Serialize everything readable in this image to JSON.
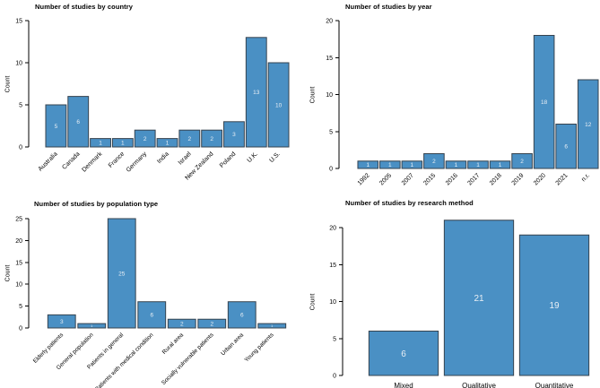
{
  "figure": {
    "description": "Four bar charts summarizing studies by country, year, population type and research method"
  },
  "colors": {
    "background": "#ffffff",
    "bar_fill": "#4a90c4",
    "bar_stroke": "#36434f",
    "bar_value_label": "#e9eff5",
    "axis": "#000000",
    "text": "#000000"
  },
  "chart_data": [
    {
      "type": "bar",
      "title": "Number of studies by country",
      "ylabel": "Count",
      "categories": [
        "Australia",
        "Canada",
        "Denmark",
        "France",
        "Germany",
        "India",
        "Israel",
        "New Zealand",
        "Poland",
        "U.K.",
        "U.S."
      ],
      "values": [
        5,
        6,
        1,
        1,
        2,
        1,
        2,
        2,
        3,
        13,
        10
      ],
      "ylim": [
        0,
        15
      ],
      "yticks": [
        0,
        5,
        10,
        15
      ],
      "x_tick_rotation": 45,
      "grid": false,
      "legend": false,
      "bar_value_labels": true
    },
    {
      "type": "bar",
      "title": "Number of studies by year",
      "ylabel": "Count",
      "categories": [
        "1992",
        "2005",
        "2007",
        "2015",
        "2016",
        "2017",
        "2018",
        "2019",
        "2020",
        "2021",
        "n.r."
      ],
      "values": [
        1,
        1,
        1,
        2,
        1,
        1,
        1,
        2,
        18,
        6,
        12
      ],
      "ylim": [
        0,
        20
      ],
      "yticks": [
        0,
        5,
        10,
        15,
        20
      ],
      "x_tick_rotation": 45,
      "grid": false,
      "legend": false,
      "bar_value_labels": true
    },
    {
      "type": "bar",
      "title": "Number of studies by population type",
      "ylabel": "Count",
      "categories": [
        "Elderly patients",
        "General population",
        "Patients in general",
        "Patients with medical condition",
        "Rural area",
        "Socially vulnerable patients",
        "Urban area",
        "Young patients"
      ],
      "values": [
        3,
        1,
        25,
        6,
        2,
        2,
        6,
        1
      ],
      "ylim": [
        0,
        25
      ],
      "yticks": [
        0,
        5,
        10,
        15,
        20,
        25
      ],
      "x_tick_rotation": 45,
      "grid": false,
      "legend": false,
      "bar_value_labels": true
    },
    {
      "type": "bar",
      "title": "Number of studies by research method",
      "ylabel": "Count",
      "categories": [
        "Mixed",
        "Qualitative",
        "Quantitative"
      ],
      "values": [
        6,
        21,
        19
      ],
      "ylim": [
        0,
        20
      ],
      "yticks": [
        0,
        5,
        10,
        15,
        20
      ],
      "x_tick_rotation": 0,
      "grid": false,
      "legend": false,
      "bar_value_labels": true
    }
  ]
}
